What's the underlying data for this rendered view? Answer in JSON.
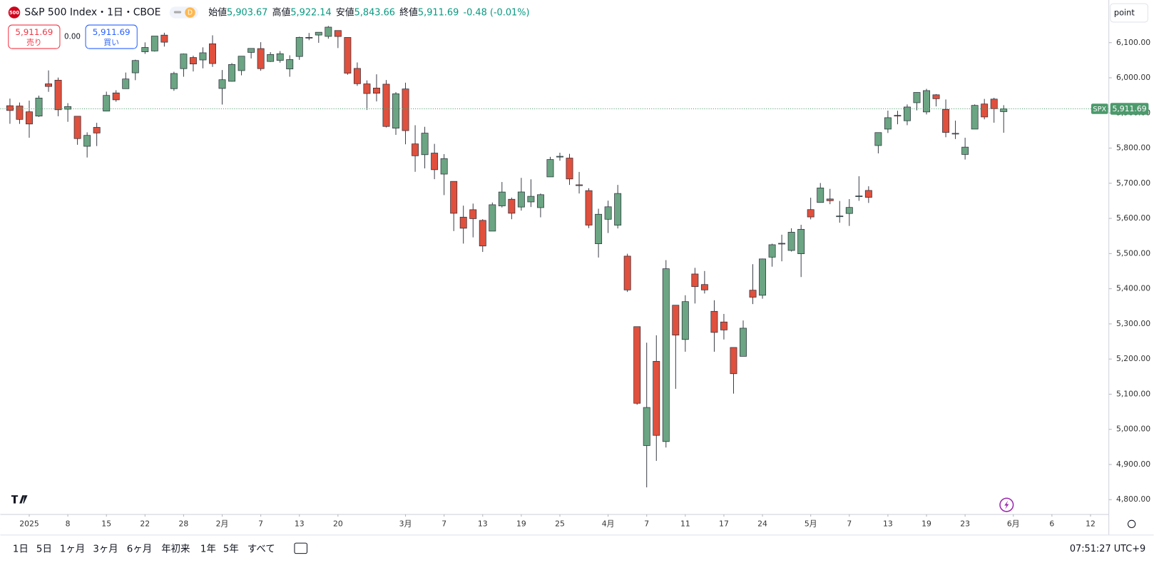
{
  "header": {
    "badge": "500",
    "title": "S&P 500 Index・1日・CBOE",
    "interval_badge": "D",
    "ohlc": [
      {
        "label": "始値",
        "value": "5,903.67"
      },
      {
        "label": "高値",
        "value": "5,922.14"
      },
      {
        "label": "安値",
        "value": "5,843.66"
      },
      {
        "label": "終値",
        "value": "5,911.69"
      }
    ],
    "change": "-0.48 (-0.01%)"
  },
  "trade": {
    "sell_price": "5,911.69",
    "sell": "売り",
    "spread": "0.00",
    "buy_price": "5,911.69",
    "buy": "買い"
  },
  "unit_button": "point",
  "price_tag": {
    "symbol": "SPX",
    "value": "5,911.69"
  },
  "toolbar": {
    "ranges": [
      "1日",
      "5日",
      "1ヶ月",
      "3ヶ月",
      "6ヶ月",
      "年初来",
      "1年",
      "5年",
      "すべて"
    ],
    "clock": "07:51:27 UTC+9"
  },
  "chart_data": {
    "type": "candlestick",
    "up_color": "#6ba583",
    "down_color": "#e0503d",
    "last_price": 5911.69,
    "last_price_color": "#4c9a6c",
    "ylim": [
      4758,
      6215
    ],
    "yticks": [
      {
        "value": 4800,
        "label": "4,800.00"
      },
      {
        "value": 4900,
        "label": "4,900.00"
      },
      {
        "value": 5000,
        "label": "5,000.00"
      },
      {
        "value": 5100,
        "label": "5,100.00"
      },
      {
        "value": 5200,
        "label": "5,200.00"
      },
      {
        "value": 5300,
        "label": "5,300.00"
      },
      {
        "value": 5400,
        "label": "5,400.00"
      },
      {
        "value": 5500,
        "label": "5,500.00"
      },
      {
        "value": 5600,
        "label": "5,600.00"
      },
      {
        "value": 5700,
        "label": "5,700.00"
      },
      {
        "value": 5800,
        "label": "5,800.00"
      },
      {
        "value": 5900,
        "label": "5,900.00"
      },
      {
        "value": 6000,
        "label": "6,000.00"
      },
      {
        "value": 6100,
        "label": "6,100.00"
      }
    ],
    "xlim": [
      -1,
      113.9
    ],
    "xticks": [
      {
        "value": 2,
        "label": "2025"
      },
      {
        "value": 6,
        "label": "8"
      },
      {
        "value": 10,
        "label": "15"
      },
      {
        "value": 14,
        "label": "22"
      },
      {
        "value": 18,
        "label": "28"
      },
      {
        "value": 22,
        "label": "2月"
      },
      {
        "value": 26,
        "label": "7"
      },
      {
        "value": 30,
        "label": "13"
      },
      {
        "value": 34,
        "label": "20"
      },
      {
        "value": 41,
        "label": "3月"
      },
      {
        "value": 45,
        "label": "7"
      },
      {
        "value": 49,
        "label": "13"
      },
      {
        "value": 53,
        "label": "19"
      },
      {
        "value": 57,
        "label": "25"
      },
      {
        "value": 62,
        "label": "4月"
      },
      {
        "value": 66,
        "label": "7"
      },
      {
        "value": 70,
        "label": "11"
      },
      {
        "value": 74,
        "label": "17"
      },
      {
        "value": 78,
        "label": "24"
      },
      {
        "value": 83,
        "label": "5月"
      },
      {
        "value": 87,
        "label": "7"
      },
      {
        "value": 91,
        "label": "13"
      },
      {
        "value": 95,
        "label": "19"
      },
      {
        "value": 99,
        "label": "23"
      },
      {
        "value": 104,
        "label": "6月"
      },
      {
        "value": 108,
        "label": "6"
      },
      {
        "value": 112,
        "label": "12"
      }
    ],
    "open": [
      5920.67,
      5919.74,
      5903.26,
      5891.07,
      5982.81,
      5993.26,
      5910.66,
      5890.66,
      5805.14,
      5859.06,
      5905.21,
      5957,
      5969,
      6014.12,
      6074,
      6076.31,
      6121.43,
      5969.04,
      6026,
      6057.7,
      6050.75,
      6096.79,
      5969.65,
      5990,
      6020.45,
      6072.22,
      6083.13,
      6046.4,
      6049.32,
      6025.08,
      6060.59,
      6115,
      6121.6,
      6117.76,
      6134.5,
      6114.82,
      6026.69,
      5982.73,
      5970.87,
      5981.88,
      5856.74,
      5968.33,
      5811.98,
      5781.23,
      5785.87,
      5726.01,
      5705.37,
      5603.65,
      5624.84,
      5594.45,
      5563.85,
      5635.6,
      5654.53,
      5632.37,
      5646.92,
      5630.73,
      5718.08,
      5775.89,
      5771.66,
      5695.64,
      5679.12,
      5527.91,
      5597.53,
      5580.76,
      5492.74,
      5292.14,
      4953.79,
      5193.57,
      4965.28,
      5353.15,
      5255.56,
      5441.96,
      5411.99,
      5335.75,
      5305.45,
      5232.94,
      5207.67,
      5395.91,
      5381.38,
      5489.73,
      5529.22,
      5508.87,
      5499.44,
      5625.14,
      5645.26,
      5655.32,
      5605.88,
      5614.02,
      5663.2,
      5679.59,
      5807.26,
      5854.04,
      5893.16,
      5877.78,
      5929.09,
      5902.88,
      5951.68,
      5910.24,
      5841.26,
      5781.89,
      5854.07,
      5925.49,
      5939.47,
      5903.67
    ],
    "high": [
      5940.79,
      5929.74,
      5935.09,
      5949.34,
      6021.04,
      6000.68,
      5927.89,
      5890.66,
      5844.94,
      5871.92,
      5960.61,
      5964.69,
      6014.96,
      6051.51,
      6100.81,
      6118.73,
      6128.18,
      6017.17,
      6069,
      6062.83,
      6086.64,
      6120.91,
      6022.13,
      6042,
      6062,
      6084,
      6101.28,
      6073,
      6076,
      6064,
      6116.91,
      6127.47,
      6129.63,
      6147.43,
      6134.5,
      6114.82,
      6043.65,
      5992.65,
      6009.82,
      5993.69,
      5959.4,
      5986.09,
      5865.08,
      5860.59,
      5812.08,
      5783.01,
      5705.37,
      5636.3,
      5642.19,
      5597.78,
      5645.27,
      5703.52,
      5659.21,
      5715.33,
      5711.15,
      5670.84,
      5775.14,
      5786.95,
      5783.62,
      5732.28,
      5685.89,
      5627.56,
      5650.57,
      5695.31,
      5499.53,
      5292.14,
      5246.57,
      5267.47,
      5481.34,
      5353.15,
      5381.46,
      5459.46,
      5450.41,
      5367.24,
      5328.31,
      5232.94,
      5309.6,
      5469.69,
      5485.82,
      5528.11,
      5553.66,
      5571.95,
      5581.84,
      5658.91,
      5700.7,
      5683.98,
      5649.62,
      5654.95,
      5720.1,
      5691.45,
      5844.19,
      5906.63,
      5906.26,
      5924.28,
      5958.62,
      5968.61,
      5953.66,
      5938.37,
      5878.08,
      5829.51,
      5924.33,
      5939.92,
      5943.13,
      5922.14
    ],
    "low": [
      5869.16,
      5868.86,
      5829.53,
      5888.66,
      5960.01,
      5890.68,
      5874.78,
      5809.48,
      5773.31,
      5805.83,
      5904.57,
      5932,
      5969,
      5993.31,
      6068,
      6074.67,
      6088.74,
      5962.92,
      6003,
      6018,
      6027,
      6030.93,
      5923.93,
      5989,
      6007,
      6055,
      6019.96,
      6045,
      6043,
      6003,
      6051,
      6107,
      6099.51,
      6111.15,
      6084.59,
      6008.56,
      5977,
      5908.49,
      5932.69,
      5858.78,
      5837.66,
      5810.91,
      5732.59,
      5742.35,
      5711.64,
      5666.29,
      5564.02,
      5528.41,
      5546.09,
      5504.65,
      5563.85,
      5631.12,
      5597.76,
      5622.2,
      5632.35,
      5603.1,
      5718.08,
      5764.03,
      5695.24,
      5670.94,
      5572.42,
      5488.73,
      5558.52,
      5571.48,
      5390.83,
      5069.9,
      4835.04,
      4910.42,
      4948.43,
      5115.27,
      5220.77,
      5358.02,
      5386.44,
      5220.79,
      5255.58,
      5101.63,
      5207.67,
      5356.48,
      5371.67,
      5462.72,
      5478.01,
      5505.7,
      5433.24,
      5597.35,
      5644.66,
      5640.53,
      5587.75,
      5578.64,
      5650.07,
      5644.04,
      5785.02,
      5843.08,
      5867.83,
      5865.22,
      5907.35,
      5895.69,
      5918.62,
      5830.91,
      5825.82,
      5767.41,
      5854.07,
      5881.88,
      5872.31,
      5843.66
    ],
    "close": [
      5906.94,
      5881.63,
      5868.55,
      5942.47,
      5975.38,
      5909.03,
      5918.25,
      5827.04,
      5836.22,
      5842.91,
      5949.91,
      5937.34,
      5996.66,
      6049.24,
      6086.37,
      6118.71,
      6101.24,
      6012.28,
      6067.7,
      6039.31,
      6071.17,
      6040.53,
      5994.57,
      6037.88,
      6061.48,
      6083.57,
      6025.99,
      6066.44,
      6068.5,
      6051.97,
      6115.07,
      6114.63,
      6129.58,
      6144.15,
      6117.52,
      6013.13,
      5983.25,
      5955.25,
      5956.06,
      5861.57,
      5954.5,
      5849.72,
      5778.15,
      5842.63,
      5738.52,
      5770.2,
      5614.56,
      5572.07,
      5599.3,
      5521.52,
      5638.94,
      5675.12,
      5614.66,
      5675.29,
      5662.89,
      5667.56,
      5767.57,
      5776.65,
      5712.2,
      5693.31,
      5580.94,
      5611.85,
      5633.07,
      5670.97,
      5396.52,
      5074.08,
      5062.25,
      4982.77,
      5456.9,
      5268.05,
      5363.36,
      5405.97,
      5396.63,
      5275.7,
      5282.7,
      5158.2,
      5287.76,
      5375.86,
      5484.77,
      5525.21,
      5528.75,
      5560.83,
      5569.06,
      5604.14,
      5686.67,
      5650.38,
      5606.91,
      5631.28,
      5663.94,
      5659.91,
      5844.19,
      5886.55,
      5892.58,
      5916.93,
      5958.38,
      5963.6,
      5940.46,
      5844.61,
      5842.01,
      5802.82,
      5921.54,
      5888.55,
      5912.17,
      5911.69
    ]
  }
}
